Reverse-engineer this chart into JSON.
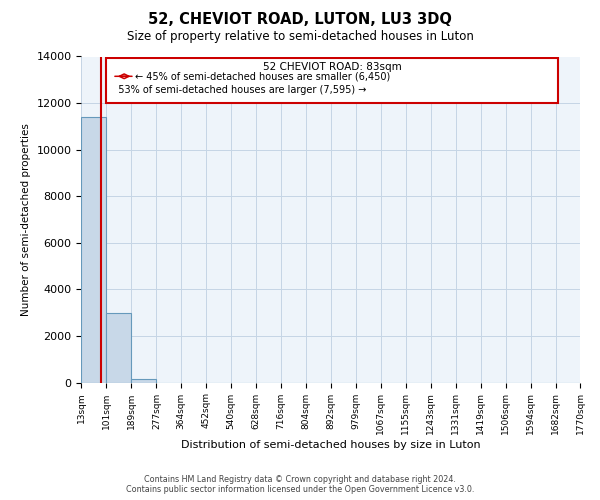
{
  "title": "52, CHEVIOT ROAD, LUTON, LU3 3DQ",
  "subtitle": "Size of property relative to semi-detached houses in Luton",
  "xlabel": "Distribution of semi-detached houses by size in Luton",
  "ylabel": "Number of semi-detached properties",
  "bin_edges": [
    13,
    101,
    189,
    277,
    364,
    452,
    540,
    628,
    716,
    804,
    892,
    979,
    1067,
    1155,
    1243,
    1331,
    1419,
    1506,
    1594,
    1682,
    1770
  ],
  "bar_heights": [
    11400,
    3000,
    150,
    0,
    0,
    0,
    0,
    0,
    0,
    0,
    0,
    0,
    0,
    0,
    0,
    0,
    0,
    0,
    0,
    0
  ],
  "bar_color": "#c8d8e8",
  "bar_edge_color": "#6699bb",
  "property_size": 83,
  "property_label": "52 CHEVIOT ROAD: 83sqm",
  "pct_smaller": 45,
  "count_smaller": 6450,
  "pct_larger": 53,
  "count_larger": 7595,
  "marker_color": "#cc0000",
  "ylim": [
    0,
    14000
  ],
  "yticks": [
    0,
    2000,
    4000,
    6000,
    8000,
    10000,
    12000,
    14000
  ],
  "grid_color": "#c5d5e5",
  "background_color": "#eef4fa",
  "footnote1": "Contains HM Land Registry data © Crown copyright and database right 2024.",
  "footnote2": "Contains public sector information licensed under the Open Government Licence v3.0."
}
